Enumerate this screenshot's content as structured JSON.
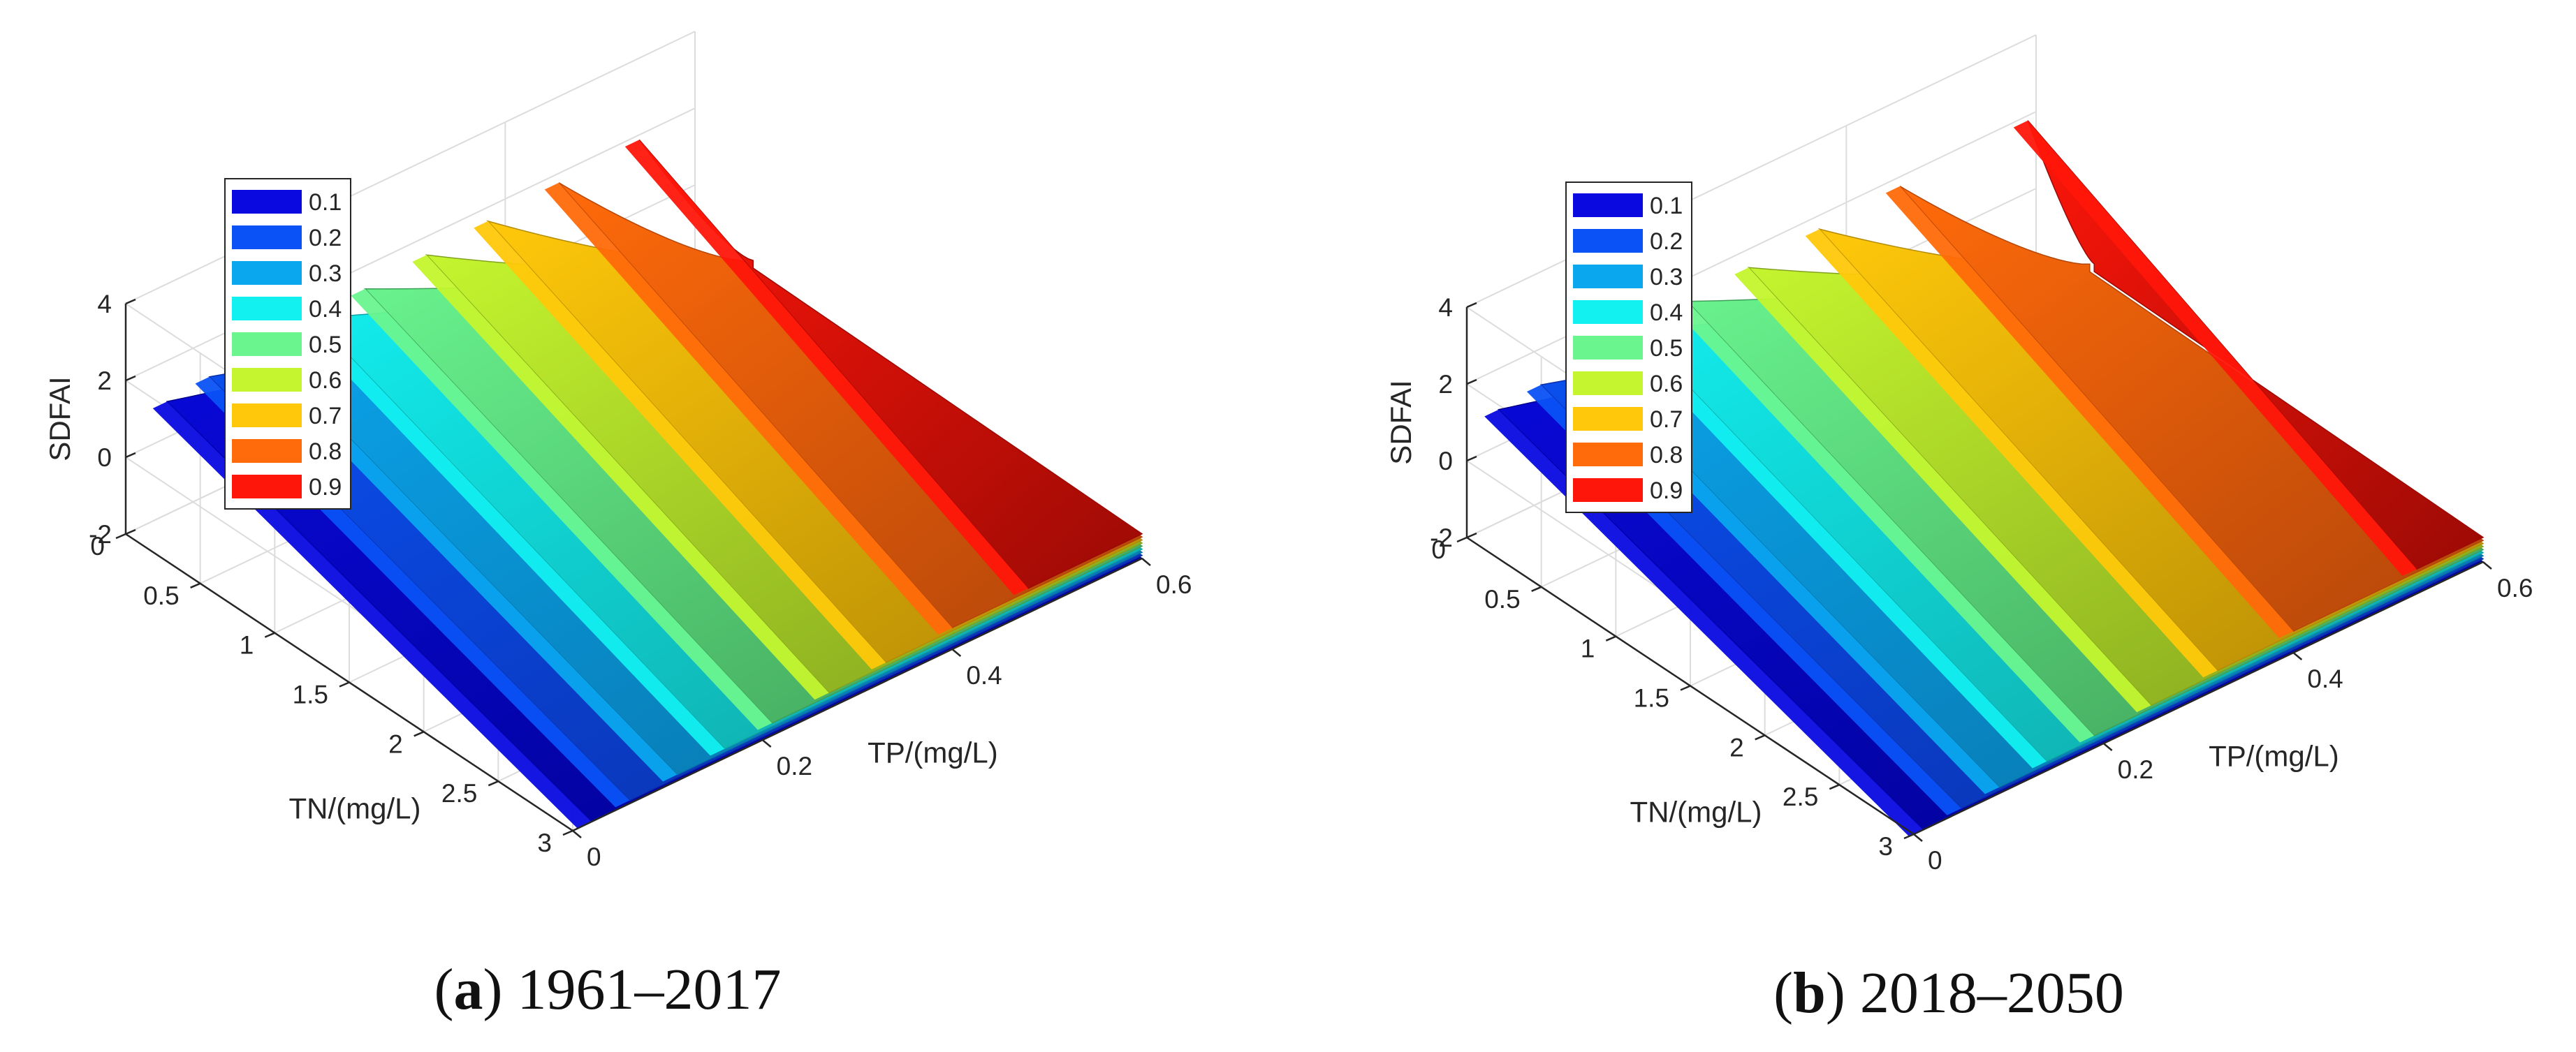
{
  "chart_data": [
    {
      "type": "surface3d",
      "panel_letter": "a",
      "caption": "1961–2017",
      "xlabel": "TP/(mg/L)",
      "ylabel": "TN/(mg/L)",
      "zlabel": "SDFAI",
      "xlim": [
        0,
        0.6
      ],
      "ylim": [
        0,
        3
      ],
      "zlim": [
        -2,
        4
      ],
      "x_ticks": [
        "0",
        "0.2",
        "0.4",
        "0.6"
      ],
      "y_ticks": [
        "0",
        "0.5",
        "1",
        "1.5",
        "2",
        "2.5",
        "3"
      ],
      "z_ticks": [
        "-2",
        "0",
        "2",
        "4"
      ],
      "legend": [
        "0.1",
        "0.2",
        "0.3",
        "0.4",
        "0.5",
        "0.6",
        "0.7",
        "0.8",
        "0.9"
      ],
      "legend_position": "upper-left",
      "series": [
        {
          "name": "0.1",
          "tp_threshold": 0.02
        },
        {
          "name": "0.2",
          "tp_threshold": 0.06
        },
        {
          "name": "0.3",
          "tp_threshold": 0.11
        },
        {
          "name": "0.4",
          "tp_threshold": 0.16
        },
        {
          "name": "0.5",
          "tp_threshold": 0.21
        },
        {
          "name": "0.6",
          "tp_threshold": 0.27
        },
        {
          "name": "0.7",
          "tp_threshold": 0.33
        },
        {
          "name": "0.8",
          "tp_threshold": 0.4
        },
        {
          "name": "0.9",
          "tp_threshold": 0.48
        }
      ]
    },
    {
      "type": "surface3d",
      "panel_letter": "b",
      "caption": "2018–2050",
      "xlabel": "TP/(mg/L)",
      "ylabel": "TN/(mg/L)",
      "zlabel": "SDFAI",
      "xlim": [
        0,
        0.6
      ],
      "ylim": [
        0,
        3
      ],
      "zlim": [
        -2,
        4
      ],
      "x_ticks": [
        "0",
        "0.2",
        "0.4",
        "0.6"
      ],
      "y_ticks": [
        "0",
        "0.5",
        "1",
        "1.5",
        "2",
        "2.5",
        "3"
      ],
      "z_ticks": [
        "-2",
        "0",
        "2",
        "4"
      ],
      "legend": [
        "0.1",
        "0.2",
        "0.3",
        "0.4",
        "0.5",
        "0.6",
        "0.7",
        "0.8",
        "0.9"
      ],
      "legend_position": "upper-left",
      "series": [
        {
          "name": "0.1",
          "tp_threshold": 0.01
        },
        {
          "name": "0.2",
          "tp_threshold": 0.05
        },
        {
          "name": "0.3",
          "tp_threshold": 0.09
        },
        {
          "name": "0.4",
          "tp_threshold": 0.14
        },
        {
          "name": "0.5",
          "tp_threshold": 0.19
        },
        {
          "name": "0.6",
          "tp_threshold": 0.25
        },
        {
          "name": "0.7",
          "tp_threshold": 0.32
        },
        {
          "name": "0.8",
          "tp_threshold": 0.4
        },
        {
          "name": "0.9",
          "tp_threshold": 0.53
        }
      ]
    }
  ],
  "colors": {
    "levels": [
      "#0a0ae0",
      "#0a52f5",
      "#0aa6ee",
      "#12f0f0",
      "#6af58f",
      "#c4f52e",
      "#ffc80a",
      "#ff6a0a",
      "#ff160a"
    ],
    "dark": [
      "#00008c",
      "#0a2fa8",
      "#0873a8",
      "#0fa3a3",
      "#3f9f58",
      "#82a21e",
      "#b38a05",
      "#b3460a",
      "#9c0a05"
    ]
  }
}
